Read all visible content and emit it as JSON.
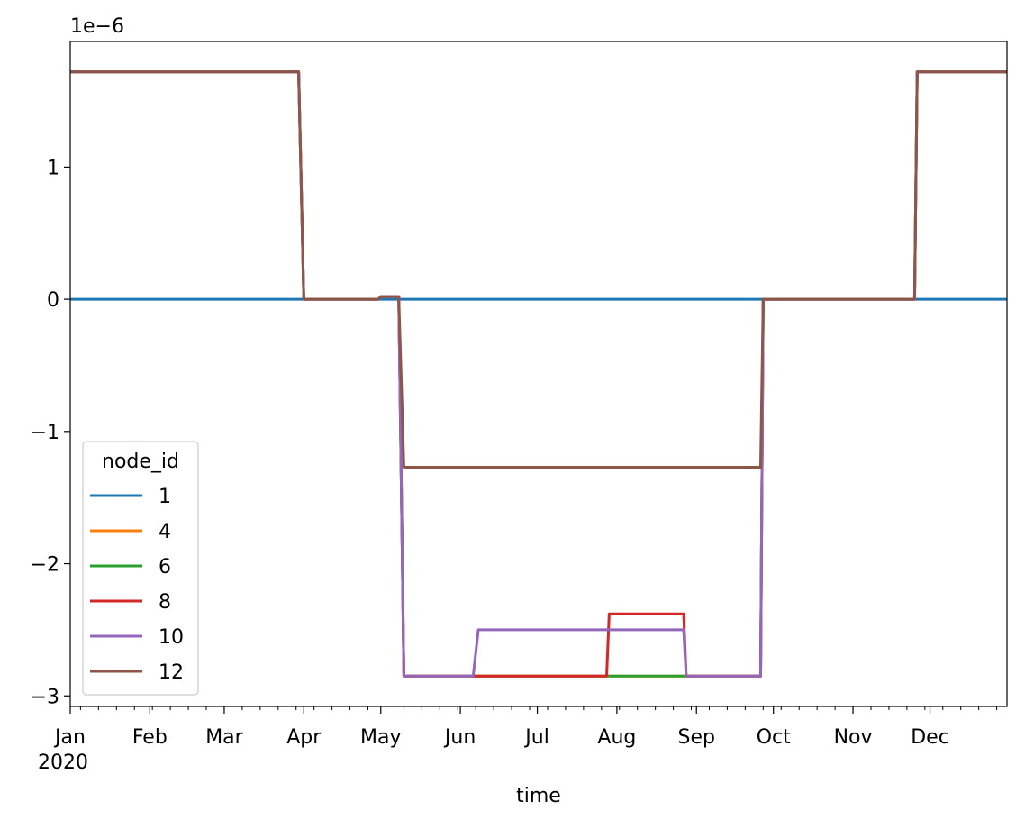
{
  "chart_data": {
    "type": "line",
    "xlabel": "time",
    "ylabel": "",
    "offset_label": "1e−6",
    "x_year_label": "2020",
    "xlim": [
      "2020-01-01",
      "2020-12-31"
    ],
    "ylim": [
      -3.08,
      1.95
    ],
    "y_ticks": [
      1,
      0,
      -1,
      -2,
      -3
    ],
    "y_tick_labels": [
      "1",
      "0",
      "−1",
      "−2",
      "−3"
    ],
    "x_ticks": [
      {
        "date": "2020-01-01",
        "label": "Jan"
      },
      {
        "date": "2020-02-01",
        "label": "Feb"
      },
      {
        "date": "2020-03-01",
        "label": "Mar"
      },
      {
        "date": "2020-04-01",
        "label": "Apr"
      },
      {
        "date": "2020-05-01",
        "label": "May"
      },
      {
        "date": "2020-06-01",
        "label": "Jun"
      },
      {
        "date": "2020-07-01",
        "label": "Jul"
      },
      {
        "date": "2020-08-01",
        "label": "Aug"
      },
      {
        "date": "2020-09-01",
        "label": "Sep"
      },
      {
        "date": "2020-10-01",
        "label": "Oct"
      },
      {
        "date": "2020-11-01",
        "label": "Nov"
      },
      {
        "date": "2020-12-01",
        "label": "Dec"
      }
    ],
    "grid": false,
    "legend": {
      "title": "node_id",
      "placement": "lower-left"
    },
    "series": [
      {
        "name": "1",
        "color": "#1f77b4",
        "points": [
          [
            "2020-01-01",
            0.0
          ],
          [
            "2020-12-31",
            0.0
          ]
        ]
      },
      {
        "name": "4",
        "color": "#ff7f0e",
        "points": [
          [
            "2020-01-01",
            1.72
          ],
          [
            "2020-03-30",
            1.72
          ],
          [
            "2020-04-01",
            0.0
          ],
          [
            "2020-04-30",
            0.0
          ],
          [
            "2020-05-01",
            0.02
          ],
          [
            "2020-05-08",
            0.02
          ],
          [
            "2020-05-10",
            -2.85
          ],
          [
            "2020-09-26",
            -2.85
          ],
          [
            "2020-09-27",
            0.0
          ],
          [
            "2020-11-25",
            0.0
          ],
          [
            "2020-11-26",
            1.72
          ],
          [
            "2020-12-31",
            1.72
          ]
        ]
      },
      {
        "name": "6",
        "color": "#2ca02c",
        "points": [
          [
            "2020-01-01",
            1.72
          ],
          [
            "2020-03-30",
            1.72
          ],
          [
            "2020-04-01",
            0.0
          ],
          [
            "2020-04-30",
            0.0
          ],
          [
            "2020-05-01",
            0.02
          ],
          [
            "2020-05-08",
            0.02
          ],
          [
            "2020-05-10",
            -2.85
          ],
          [
            "2020-09-26",
            -2.85
          ],
          [
            "2020-09-27",
            0.0
          ],
          [
            "2020-11-25",
            0.0
          ],
          [
            "2020-11-26",
            1.72
          ],
          [
            "2020-12-31",
            1.72
          ]
        ]
      },
      {
        "name": "8",
        "color": "#d62728",
        "points": [
          [
            "2020-01-01",
            1.72
          ],
          [
            "2020-03-30",
            1.72
          ],
          [
            "2020-04-01",
            0.0
          ],
          [
            "2020-04-30",
            0.0
          ],
          [
            "2020-05-01",
            0.02
          ],
          [
            "2020-05-08",
            0.02
          ],
          [
            "2020-05-10",
            -2.85
          ],
          [
            "2020-07-28",
            -2.85
          ],
          [
            "2020-07-29",
            -2.38
          ],
          [
            "2020-08-27",
            -2.38
          ],
          [
            "2020-08-28",
            -2.85
          ],
          [
            "2020-09-26",
            -2.85
          ],
          [
            "2020-09-27",
            0.0
          ],
          [
            "2020-11-25",
            0.0
          ],
          [
            "2020-11-26",
            1.72
          ],
          [
            "2020-12-31",
            1.72
          ]
        ]
      },
      {
        "name": "10",
        "color": "#9467bd",
        "points": [
          [
            "2020-01-01",
            1.72
          ],
          [
            "2020-03-30",
            1.72
          ],
          [
            "2020-04-01",
            0.0
          ],
          [
            "2020-04-30",
            0.0
          ],
          [
            "2020-05-01",
            0.02
          ],
          [
            "2020-05-08",
            0.02
          ],
          [
            "2020-05-10",
            -2.85
          ],
          [
            "2020-06-06",
            -2.85
          ],
          [
            "2020-06-08",
            -2.5
          ],
          [
            "2020-08-27",
            -2.5
          ],
          [
            "2020-08-28",
            -2.85
          ],
          [
            "2020-09-26",
            -2.85
          ],
          [
            "2020-09-27",
            0.0
          ],
          [
            "2020-11-25",
            0.0
          ],
          [
            "2020-11-26",
            1.72
          ],
          [
            "2020-12-31",
            1.72
          ]
        ]
      },
      {
        "name": "12",
        "color": "#8c564b",
        "points": [
          [
            "2020-01-01",
            1.72
          ],
          [
            "2020-03-30",
            1.72
          ],
          [
            "2020-04-01",
            0.0
          ],
          [
            "2020-04-30",
            0.0
          ],
          [
            "2020-05-01",
            0.02
          ],
          [
            "2020-05-08",
            0.02
          ],
          [
            "2020-05-10",
            -1.27
          ],
          [
            "2020-09-26",
            -1.27
          ],
          [
            "2020-09-27",
            0.0
          ],
          [
            "2020-11-25",
            0.0
          ],
          [
            "2020-11-26",
            1.72
          ],
          [
            "2020-12-31",
            1.72
          ]
        ]
      }
    ]
  }
}
